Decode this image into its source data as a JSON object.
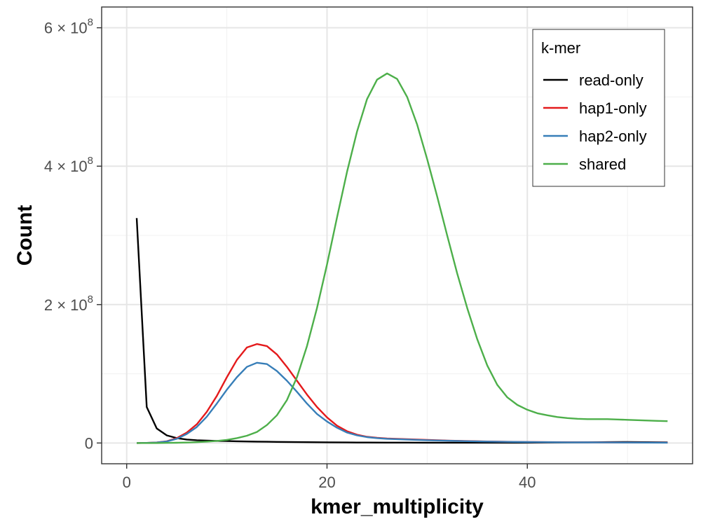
{
  "chart_data": {
    "type": "line",
    "xlabel": "kmer_multiplicity",
    "ylabel": "Count",
    "xlim": [
      -2.5,
      56.5
    ],
    "ylim": [
      -30000000,
      630000000
    ],
    "x_ticks": [
      {
        "value": 0,
        "label": "0"
      },
      {
        "value": 20,
        "label": "20"
      },
      {
        "value": 40,
        "label": "40"
      }
    ],
    "x_minor": [
      10,
      30,
      50
    ],
    "y_ticks": [
      {
        "value": 0,
        "mantissa": "0",
        "base": "",
        "exponent": ""
      },
      {
        "value": 200000000,
        "mantissa": "2 × ",
        "base": "10",
        "exponent": "8"
      },
      {
        "value": 400000000,
        "mantissa": "4 × ",
        "base": "10",
        "exponent": "8"
      },
      {
        "value": 600000000,
        "mantissa": "6 × ",
        "base": "10",
        "exponent": "8"
      }
    ],
    "y_minor": [
      100000000,
      300000000,
      500000000
    ],
    "grid": true,
    "legend": {
      "title": "k-mer",
      "position": "top-right"
    },
    "series": [
      {
        "name": "read-only",
        "color": "#000000",
        "x": [
          1,
          2,
          3,
          4,
          5,
          6,
          7,
          8,
          9,
          10,
          11,
          12,
          13,
          14,
          15,
          16,
          17,
          18,
          19,
          20,
          22,
          24,
          26,
          28,
          30,
          32,
          34,
          36,
          38,
          40,
          42,
          44,
          46,
          48,
          50,
          52,
          54
        ],
        "y": [
          325000000,
          52000000,
          21000000,
          11000000,
          7000000,
          5000000,
          4000000,
          3500000,
          3000000,
          2800000,
          2500000,
          2200000,
          2000000,
          1800000,
          1600000,
          1500000,
          1300000,
          1200000,
          1100000,
          1000000,
          800000,
          700000,
          600000,
          600000,
          500000,
          500000,
          500000,
          500000,
          500000,
          500000,
          700000,
          800000,
          1000000,
          1300000,
          1500000,
          1200000,
          1000000
        ]
      },
      {
        "name": "hap1-only",
        "color": "#e41a1c",
        "x": [
          1,
          2,
          3,
          4,
          5,
          6,
          7,
          8,
          9,
          10,
          11,
          12,
          13,
          14,
          15,
          16,
          17,
          18,
          19,
          20,
          21,
          22,
          23,
          24,
          25,
          26,
          28,
          30,
          32,
          34,
          36,
          38,
          40,
          42,
          44,
          46,
          48,
          50,
          52,
          54
        ],
        "y": [
          0,
          200000,
          800000,
          2500000,
          7000000,
          15000000,
          27000000,
          45000000,
          68000000,
          95000000,
          120000000,
          138000000,
          143000000,
          140000000,
          128000000,
          110000000,
          90000000,
          70000000,
          52000000,
          37000000,
          25000000,
          17000000,
          12000000,
          9000000,
          7500000,
          6500000,
          5500000,
          4500000,
          3500000,
          2800000,
          2200000,
          1800000,
          1500000,
          1300000,
          1100000,
          1000000,
          900000,
          800000,
          700000,
          600000
        ]
      },
      {
        "name": "hap2-only",
        "color": "#377eb8",
        "x": [
          1,
          2,
          3,
          4,
          5,
          6,
          7,
          8,
          9,
          10,
          11,
          12,
          13,
          14,
          15,
          16,
          17,
          18,
          19,
          20,
          21,
          22,
          23,
          24,
          25,
          26,
          28,
          30,
          32,
          34,
          36,
          38,
          40,
          42,
          44,
          46,
          48,
          50,
          52,
          54
        ],
        "y": [
          0,
          200000,
          700000,
          2200000,
          6000000,
          13000000,
          23000000,
          38000000,
          57000000,
          77000000,
          95000000,
          110000000,
          116000000,
          114000000,
          104000000,
          90000000,
          74000000,
          57000000,
          42000000,
          31000000,
          22000000,
          15000000,
          11000000,
          8500000,
          7000000,
          6000000,
          5000000,
          4000000,
          3300000,
          2600000,
          2100000,
          1700000,
          1400000,
          1200000,
          1000000,
          900000,
          800000,
          700000,
          600000,
          500000
        ]
      },
      {
        "name": "shared",
        "color": "#4daf4a",
        "x": [
          1,
          2,
          3,
          4,
          5,
          6,
          7,
          8,
          9,
          10,
          11,
          12,
          13,
          14,
          15,
          16,
          17,
          18,
          19,
          20,
          21,
          22,
          23,
          24,
          25,
          26,
          27,
          28,
          29,
          30,
          31,
          32,
          33,
          34,
          35,
          36,
          37,
          38,
          39,
          40,
          41,
          42,
          43,
          44,
          45,
          46,
          47,
          48,
          49,
          50,
          51,
          52,
          53,
          54
        ],
        "y": [
          0,
          0,
          0,
          200000,
          400000,
          700000,
          1200000,
          2000000,
          3000000,
          4500000,
          7000000,
          10500000,
          16000000,
          26000000,
          40000000,
          62000000,
          95000000,
          140000000,
          195000000,
          258000000,
          326000000,
          392000000,
          450000000,
          497000000,
          525000000,
          534000000,
          526000000,
          500000000,
          460000000,
          410000000,
          356000000,
          300000000,
          245000000,
          195000000,
          150000000,
          112000000,
          84000000,
          66000000,
          55000000,
          48000000,
          43000000,
          40000000,
          37500000,
          36000000,
          35000000,
          34500000,
          34500000,
          34500000,
          34000000,
          33500000,
          33000000,
          32500000,
          32000000,
          31500000
        ]
      }
    ]
  }
}
